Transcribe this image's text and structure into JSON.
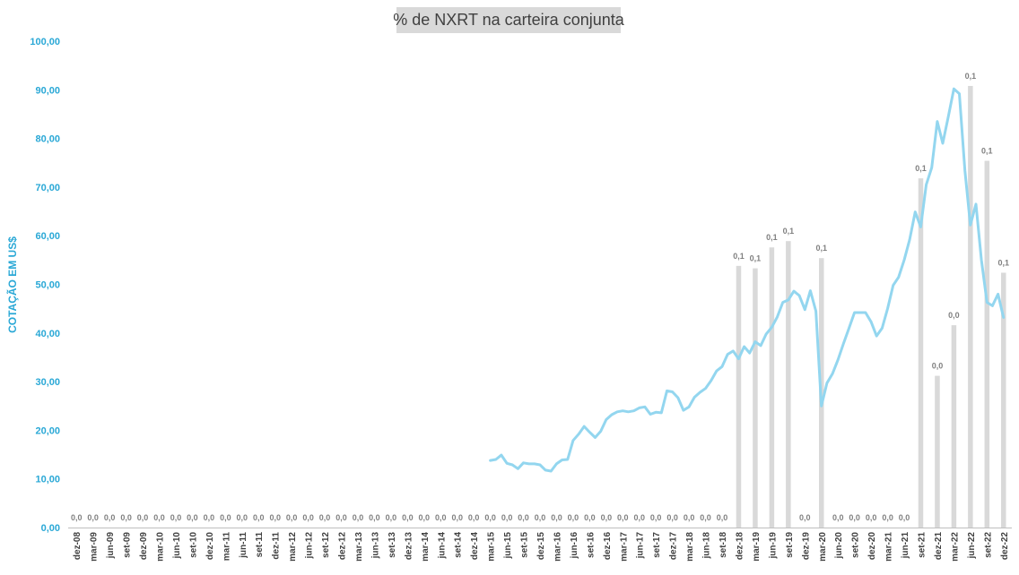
{
  "chart_data": {
    "type": "bar+line",
    "title": "% de NXRT na carteira conjunta",
    "ylabel": "COTAÇÃO EM US$",
    "ylim": [
      0,
      100
    ],
    "yticks": [
      "0,00",
      "10,00",
      "20,00",
      "30,00",
      "40,00",
      "50,00",
      "60,00",
      "70,00",
      "80,00",
      "90,00",
      "100,00"
    ],
    "x_tick_labels": [
      "dez-08",
      "mar-09",
      "jun-09",
      "set-09",
      "dez-09",
      "mar-10",
      "jun-10",
      "set-10",
      "dez-10",
      "mar-11",
      "jun-11",
      "set-11",
      "dez-11",
      "mar-12",
      "jun-12",
      "set-12",
      "dez-12",
      "mar-13",
      "jun-13",
      "set-13",
      "dez-13",
      "mar-14",
      "jun-14",
      "set-14",
      "dez-14",
      "mar-15",
      "jun-15",
      "set-15",
      "dez-15",
      "mar-16",
      "jun-16",
      "set-16",
      "dez-16",
      "mar-17",
      "jun-17",
      "set-17",
      "dez-17",
      "mar-18",
      "jun-18",
      "set-18",
      "dez-18",
      "mar-19",
      "jun-19",
      "set-19",
      "dez-19",
      "mar-20",
      "jun-20",
      "set-20",
      "dez-20",
      "mar-21",
      "jun-21",
      "set-21",
      "dez-21",
      "mar-22",
      "jun-22",
      "set-22",
      "dez-22"
    ],
    "bars": {
      "description_series": "% de NXRT na carteira conjunta",
      "values_on_price_axis": [
        0,
        0,
        0,
        0,
        0,
        0,
        0,
        0,
        0,
        0,
        0,
        0,
        0,
        0,
        0,
        0,
        0,
        0,
        0,
        0,
        0,
        0,
        0,
        0,
        0,
        0,
        0,
        0,
        0,
        0,
        0,
        0,
        0,
        0,
        0,
        0,
        0,
        0,
        0,
        0,
        53.8,
        53.3,
        57.6,
        58.9,
        0,
        55.4,
        0,
        0,
        0,
        0,
        0,
        71.8,
        31.2,
        41.6,
        90.8,
        75.4,
        52.4
      ],
      "labels": [
        "0,0",
        "0,0",
        "0,0",
        "0,0",
        "0,0",
        "0,0",
        "0,0",
        "0,0",
        "0,0",
        "0,0",
        "0,0",
        "0,0",
        "0,0",
        "0,0",
        "0,0",
        "0,0",
        "0,0",
        "0,0",
        "0,0",
        "0,0",
        "0,0",
        "0,0",
        "0,0",
        "0,0",
        "0,0",
        "0,0",
        "0,0",
        "0,0",
        "0,0",
        "0,0",
        "0,0",
        "0,0",
        "0,0",
        "0,0",
        "0,0",
        "0,0",
        "0,0",
        "0,0",
        "0,0",
        "0,0",
        "0,1",
        "0,1",
        "0,1",
        "0,1",
        "0,0",
        "0,1",
        "0,0",
        "0,0",
        "0,0",
        "0,0",
        "0,0",
        "0,1",
        "0,0",
        "0,0",
        "0,1",
        "0,1",
        "0,1"
      ]
    },
    "line": {
      "start_index": 25.0,
      "step": 0.3333,
      "values": [
        13.8,
        14.0,
        14.9,
        13.2,
        12.9,
        12.1,
        13.3,
        13.1,
        13.1,
        12.9,
        11.8,
        11.6,
        13.1,
        13.9,
        14.0,
        17.9,
        19.2,
        20.8,
        19.6,
        18.5,
        19.8,
        22.2,
        23.2,
        23.8,
        24.0,
        23.8,
        24.0,
        24.6,
        24.8,
        23.3,
        23.7,
        23.6,
        28.1,
        27.9,
        26.7,
        24.1,
        24.8,
        26.8,
        27.8,
        28.6,
        30.2,
        32.2,
        33.1,
        35.6,
        36.3,
        34.7,
        37.2,
        35.9,
        38.2,
        37.4,
        39.8,
        41.2,
        43.3,
        46.3,
        46.8,
        48.6,
        47.7,
        44.8,
        48.7,
        44.5,
        25.0,
        29.7,
        31.6,
        34.5,
        37.8,
        41.0,
        44.2,
        44.2,
        44.2,
        42.3,
        39.4,
        41.0,
        45.0,
        49.8,
        51.5,
        55.0,
        59.2,
        64.9,
        61.8,
        70.5,
        74.0,
        83.5,
        79.0,
        84.5,
        90.2,
        89.2,
        73.4,
        62.2,
        66.5,
        55.0,
        46.3,
        45.6,
        48.0,
        43.2
      ]
    }
  },
  "colors": {
    "bar": "#d9d9d9",
    "line": "#93d6ef",
    "axis_label": "#2aa8d6",
    "tick_text": "#404040",
    "bar_label": "#808080"
  }
}
